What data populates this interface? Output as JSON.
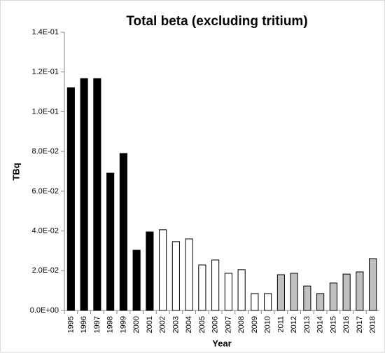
{
  "chart_data": {
    "type": "bar",
    "title": "Total beta (excluding tritium)",
    "x_label": "Year",
    "y_label": "TBq",
    "categories": [
      "1995",
      "1996",
      "1997",
      "1998",
      "1999",
      "2000",
      "2001",
      "2002",
      "2003",
      "2004",
      "2005",
      "2006",
      "2007",
      "2008",
      "2009",
      "2010",
      "2011",
      "2012",
      "2013",
      "2014",
      "2015",
      "2016",
      "2017",
      "2018"
    ],
    "values": [
      0.1121,
      0.1167,
      0.1167,
      0.0691,
      0.079,
      0.0303,
      0.0395,
      0.0406,
      0.0346,
      0.036,
      0.0229,
      0.0254,
      0.0187,
      0.0205,
      0.0085,
      0.0085,
      0.018,
      0.0187,
      0.0123,
      0.0085,
      0.0138,
      0.0183,
      0.0194,
      0.0261
    ],
    "colors": [
      "#000000",
      "#000000",
      "#000000",
      "#000000",
      "#000000",
      "#000000",
      "#000000",
      "#ffffff",
      "#ffffff",
      "#ffffff",
      "#ffffff",
      "#ffffff",
      "#ffffff",
      "#ffffff",
      "#ffffff",
      "#ffffff",
      "#c0c0c0",
      "#c0c0c0",
      "#c0c0c0",
      "#c0c0c0",
      "#c0c0c0",
      "#c0c0c0",
      "#c0c0c0",
      "#c0c0c0"
    ],
    "ylim": [
      0,
      0.14
    ],
    "yticks": [
      {
        "value": 0,
        "label": "0.0E+00"
      },
      {
        "value": 0.02,
        "label": "2.0E-02"
      },
      {
        "value": 0.04,
        "label": "4.0E-02"
      },
      {
        "value": 0.06,
        "label": "6.0E-02"
      },
      {
        "value": 0.08,
        "label": "8.0E-02"
      },
      {
        "value": 0.1,
        "label": "1.0E-01"
      },
      {
        "value": 0.12,
        "label": "1.2E-01"
      },
      {
        "value": 0.14,
        "label": "1.4E-01"
      }
    ],
    "grid": false
  }
}
